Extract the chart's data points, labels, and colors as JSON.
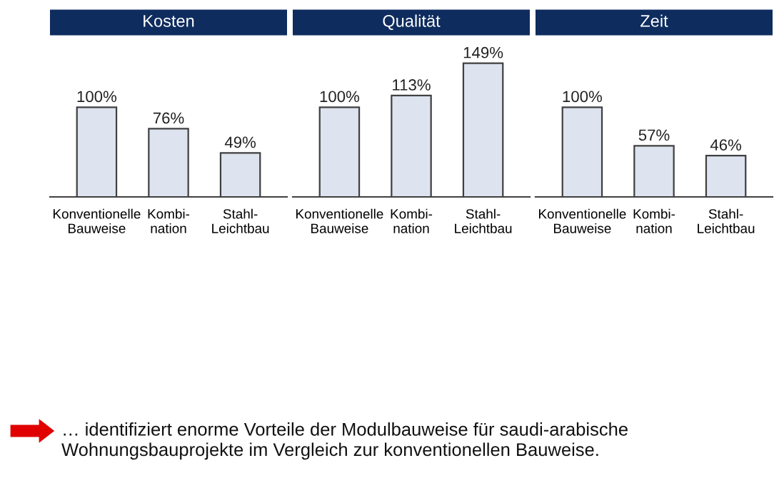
{
  "chart_data": [
    {
      "type": "bar",
      "title": "Kosten",
      "categories": [
        "Konventionelle\nBauweise",
        "Kombi-\nnation",
        "Stahl-\nLeichtbau"
      ],
      "values": [
        100,
        76,
        49
      ],
      "value_labels": [
        "100%",
        "76%",
        "49%"
      ],
      "color": "#dde3ef",
      "annotations": [
        "… identifiziert enorme Vorteile der Modulbauweise für saudi-arabische Wohnungsbauprojekte im Vergleich zur konventionellen Bauweise."
      ]
    },
    {
      "type": "bar",
      "title": "Qualität",
      "categories": [
        "Konventionelle\nBauweise",
        "Kombi-\nnation",
        "Stahl-\nLeichtbau"
      ],
      "values": [
        100,
        113,
        149
      ],
      "value_labels": [
        "100%",
        "113%",
        "149%"
      ],
      "color": "#dde3ef"
    },
    {
      "type": "bar",
      "title": "Zeit",
      "categories": [
        "Konventionelle\nBauweise",
        "Kombi-\nnation",
        "Stahl-\nLeichtbau"
      ],
      "values": [
        100,
        57,
        46
      ],
      "value_labels": [
        "100%",
        "57%",
        "46%"
      ],
      "color": "#dde3ef"
    }
  ]
}
